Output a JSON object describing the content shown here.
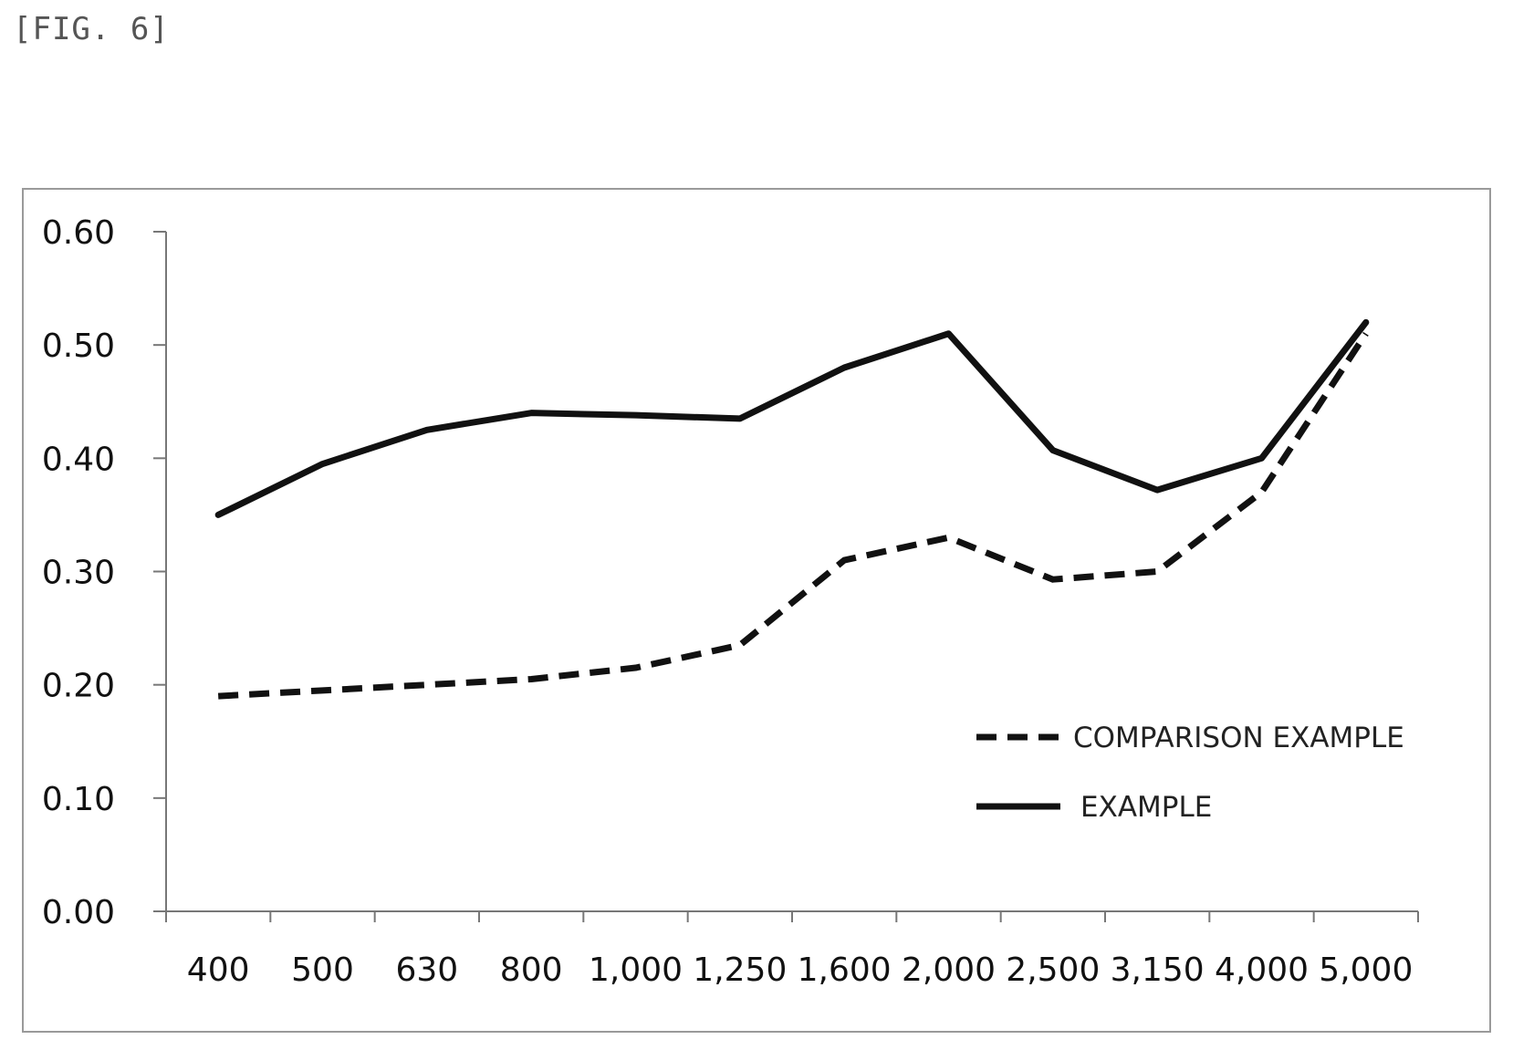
{
  "figure_label": "[FIG. 6]",
  "chart_data": {
    "type": "line",
    "categories": [
      "400",
      "500",
      "630",
      "800",
      "1,000",
      "1,250",
      "1,600",
      "2,000",
      "2,500",
      "3,150",
      "4,000",
      "5,000"
    ],
    "y_ticks": [
      "0.00",
      "0.10",
      "0.20",
      "0.30",
      "0.40",
      "0.50",
      "0.60"
    ],
    "ylim": [
      0,
      0.6
    ],
    "grid": false,
    "legend_position": "bottom-right",
    "series": [
      {
        "name": "COMPARISON EXAMPLE",
        "style": "dashed",
        "color": "#111111",
        "values": [
          0.19,
          0.195,
          0.2,
          0.205,
          0.215,
          0.235,
          0.31,
          0.33,
          0.293,
          0.3,
          0.37,
          0.51
        ]
      },
      {
        "name": "EXAMPLE",
        "style": "solid",
        "color": "#111111",
        "values": [
          0.35,
          0.395,
          0.425,
          0.44,
          0.438,
          0.435,
          0.48,
          0.51,
          0.407,
          0.372,
          0.4,
          0.52
        ]
      }
    ]
  }
}
